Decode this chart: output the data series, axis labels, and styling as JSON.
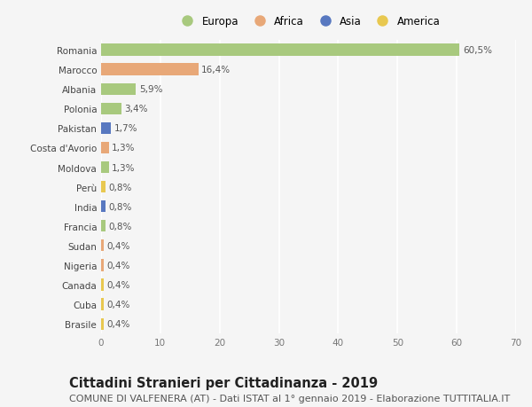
{
  "countries": [
    "Romania",
    "Marocco",
    "Albania",
    "Polonia",
    "Pakistan",
    "Costa d'Avorio",
    "Moldova",
    "Perù",
    "India",
    "Francia",
    "Sudan",
    "Nigeria",
    "Canada",
    "Cuba",
    "Brasile"
  ],
  "values": [
    60.5,
    16.4,
    5.9,
    3.4,
    1.7,
    1.3,
    1.3,
    0.8,
    0.8,
    0.8,
    0.4,
    0.4,
    0.4,
    0.4,
    0.4
  ],
  "labels": [
    "60,5%",
    "16,4%",
    "5,9%",
    "3,4%",
    "1,7%",
    "1,3%",
    "1,3%",
    "0,8%",
    "0,8%",
    "0,8%",
    "0,4%",
    "0,4%",
    "0,4%",
    "0,4%",
    "0,4%"
  ],
  "continents": [
    "Europa",
    "Africa",
    "Europa",
    "Europa",
    "Asia",
    "Africa",
    "Europa",
    "America",
    "Asia",
    "Europa",
    "Africa",
    "Africa",
    "America",
    "America",
    "America"
  ],
  "continent_colors": {
    "Europa": "#a8c97e",
    "Africa": "#e8a878",
    "Asia": "#5878c0",
    "America": "#e8c850"
  },
  "xlim": [
    0,
    70
  ],
  "xticks": [
    0,
    10,
    20,
    30,
    40,
    50,
    60,
    70
  ],
  "background_color": "#f5f5f5",
  "title": "Cittadini Stranieri per Cittadinanza - 2019",
  "subtitle": "COMUNE DI VALFENERA (AT) - Dati ISTAT al 1° gennaio 2019 - Elaborazione TUTTITALIA.IT",
  "title_fontsize": 10.5,
  "subtitle_fontsize": 8,
  "bar_height": 0.6,
  "label_fontsize": 7.5,
  "tick_fontsize": 7.5,
  "legend_order": [
    "Europa",
    "Africa",
    "Asia",
    "America"
  ]
}
